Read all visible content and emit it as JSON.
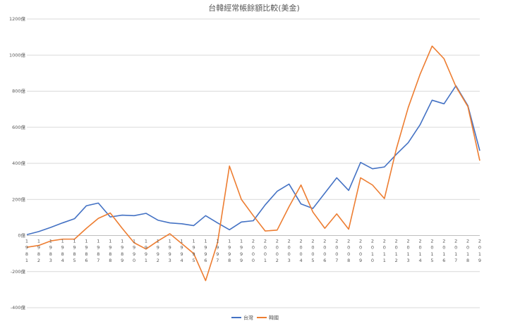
{
  "chart_data": {
    "type": "line",
    "title": "台韓經常帳餘額比較(美金)",
    "x": [
      "1981",
      "1982",
      "1983",
      "1984",
      "1985",
      "1986",
      "1987",
      "1988",
      "1989",
      "1990",
      "1991",
      "1992",
      "1993",
      "1994",
      "1995",
      "1996",
      "1997",
      "1998",
      "1999",
      "2000",
      "2001",
      "2002",
      "2003",
      "2004",
      "2005",
      "2006",
      "2007",
      "2008",
      "2009",
      "2010",
      "2011",
      "2012",
      "2013",
      "2014",
      "2015",
      "2016",
      "2017",
      "2018",
      "2019"
    ],
    "series": [
      {
        "name": "台灣",
        "color": "#4472c4",
        "values": [
          5,
          22,
          45,
          70,
          93,
          165,
          180,
          103,
          113,
          110,
          123,
          85,
          70,
          65,
          55,
          110,
          70,
          32,
          75,
          82,
          170,
          245,
          285,
          175,
          150,
          235,
          320,
          250,
          405,
          370,
          380,
          450,
          515,
          615,
          750,
          730,
          830,
          720,
          470
        ]
      },
      {
        "name": "韓國",
        "color": "#ed7d31",
        "values": [
          -65,
          -55,
          -30,
          -20,
          -20,
          40,
          95,
          125,
          40,
          -40,
          -75,
          -30,
          10,
          -45,
          -100,
          -250,
          -40,
          385,
          200,
          110,
          25,
          30,
          160,
          280,
          130,
          40,
          120,
          35,
          320,
          280,
          205,
          480,
          710,
          895,
          1050,
          980,
          825,
          715,
          415
        ]
      }
    ],
    "ylim": [
      -400,
      1200
    ],
    "yticks": [
      -400,
      -200,
      0,
      200,
      400,
      600,
      800,
      1000,
      1200
    ],
    "ytick_labels": [
      "-400億",
      "-200億",
      "0億",
      "200億",
      "400億",
      "600億",
      "800億",
      "1000億",
      "1200億"
    ],
    "grid": true,
    "legend": "bottom"
  }
}
